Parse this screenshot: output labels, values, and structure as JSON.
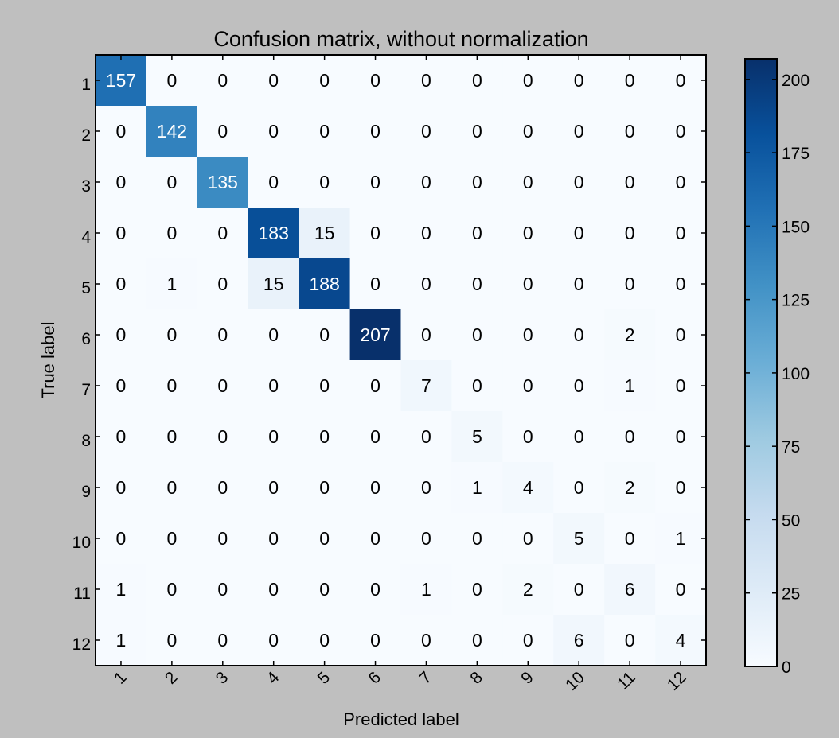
{
  "chart_data": {
    "type": "heatmap",
    "title": "Confusion matrix, without normalization",
    "xlabel": "Predicted label",
    "ylabel": "True label",
    "x_categories": [
      "1",
      "2",
      "3",
      "4",
      "5",
      "6",
      "7",
      "8",
      "9",
      "10",
      "11",
      "12"
    ],
    "y_categories": [
      "1",
      "2",
      "3",
      "4",
      "5",
      "6",
      "7",
      "8",
      "9",
      "10",
      "11",
      "12"
    ],
    "matrix": [
      [
        157,
        0,
        0,
        0,
        0,
        0,
        0,
        0,
        0,
        0,
        0,
        0
      ],
      [
        0,
        142,
        0,
        0,
        0,
        0,
        0,
        0,
        0,
        0,
        0,
        0
      ],
      [
        0,
        0,
        135,
        0,
        0,
        0,
        0,
        0,
        0,
        0,
        0,
        0
      ],
      [
        0,
        0,
        0,
        183,
        15,
        0,
        0,
        0,
        0,
        0,
        0,
        0
      ],
      [
        0,
        1,
        0,
        15,
        188,
        0,
        0,
        0,
        0,
        0,
        0,
        0
      ],
      [
        0,
        0,
        0,
        0,
        0,
        207,
        0,
        0,
        0,
        0,
        2,
        0
      ],
      [
        0,
        0,
        0,
        0,
        0,
        0,
        7,
        0,
        0,
        0,
        1,
        0
      ],
      [
        0,
        0,
        0,
        0,
        0,
        0,
        0,
        5,
        0,
        0,
        0,
        0
      ],
      [
        0,
        0,
        0,
        0,
        0,
        0,
        0,
        1,
        4,
        0,
        2,
        0
      ],
      [
        0,
        0,
        0,
        0,
        0,
        0,
        0,
        0,
        0,
        5,
        0,
        1
      ],
      [
        1,
        0,
        0,
        0,
        0,
        0,
        1,
        0,
        2,
        0,
        6,
        0
      ],
      [
        1,
        0,
        0,
        0,
        0,
        0,
        0,
        0,
        0,
        6,
        0,
        4
      ]
    ],
    "colormap": "Blues",
    "colorbar": {
      "range": [
        0,
        207
      ],
      "ticks": [
        0,
        25,
        50,
        75,
        100,
        125,
        150,
        175,
        200
      ]
    },
    "text_threshold": 103.5,
    "colors": {
      "low": "#f7fbff",
      "high": "#08306b",
      "text_dark": "#000000",
      "text_light": "#ffffff",
      "figure_bg": "#bfbfbf"
    }
  }
}
